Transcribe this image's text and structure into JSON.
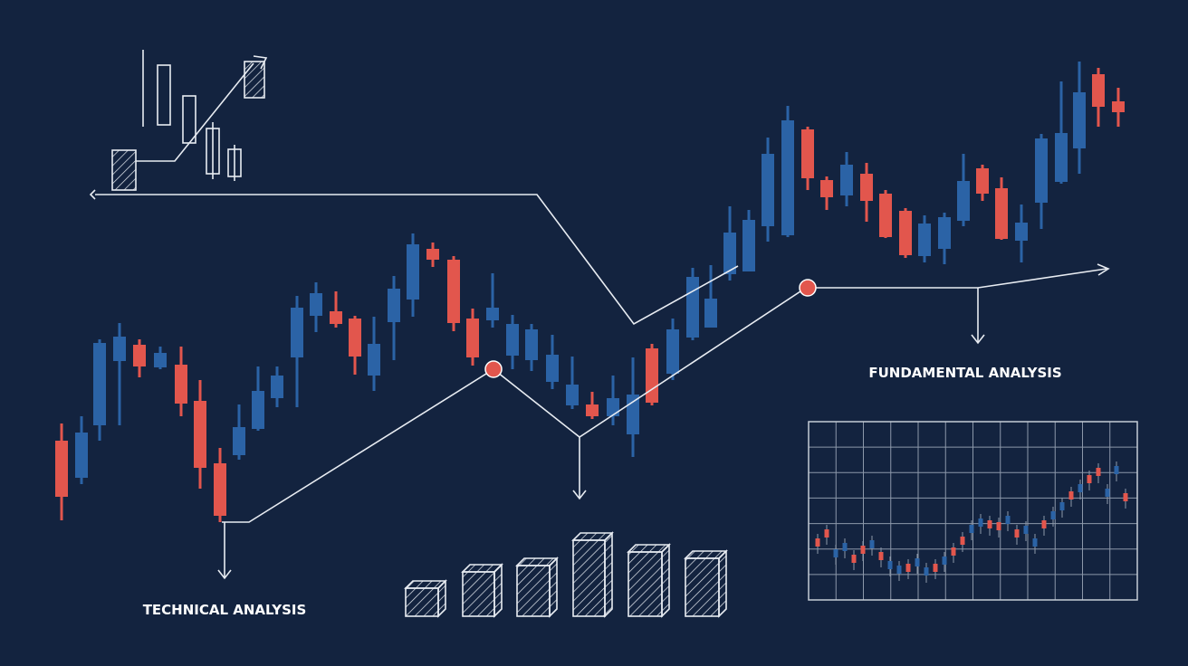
{
  "labels": {
    "technical": "TECHNICAL ANALYSIS",
    "fundamental": "FUNDAMENTAL ANALYSIS"
  }
}
